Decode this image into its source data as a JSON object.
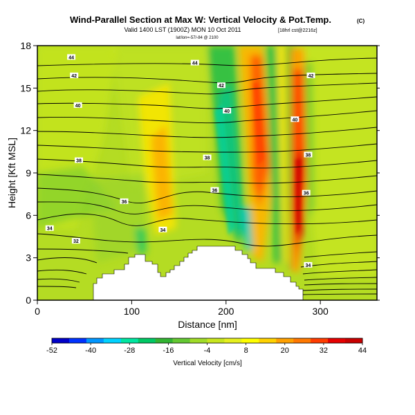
{
  "title": "Wind-Parallel Section at Max W: Vertical Velocity & Pot.Temp.",
  "copyright": "(C)",
  "subtitle": "Valid 1400 LST (1900Z) MON 10 Oct 2011",
  "subtitle_tag": "[18hrl cst@2216z]",
  "subtitle2": "lat/lon=-57/-84 @ 2100",
  "chart_data": {
    "type": "heatmap",
    "title": "Wind-Parallel Section at Max W: Vertical Velocity & Pot.Temp.",
    "xlabel": "Distance [nm]",
    "ylabel": "Height [Kft MSL]",
    "xlim": [
      0,
      360
    ],
    "ylim": [
      0,
      18
    ],
    "xticks": [
      0,
      100,
      200,
      300
    ],
    "yticks": [
      0,
      3,
      6,
      9,
      12,
      15,
      18
    ],
    "colorbar": {
      "label": "Vertical Velocity [cm/s]",
      "ticks": [
        -52,
        -40,
        -28,
        -16,
        -4,
        8,
        20,
        32,
        44
      ],
      "colors": [
        "#0000c8",
        "#0032ff",
        "#0096ff",
        "#00d2ff",
        "#00e6a0",
        "#00c864",
        "#32b432",
        "#64c832",
        "#a0dc28",
        "#c8e61e",
        "#e6f01e",
        "#ffff00",
        "#ffd200",
        "#ffa000",
        "#ff7800",
        "#ff3c00",
        "#e60000",
        "#c80000"
      ]
    },
    "contour_labels": [
      {
        "value": "44",
        "x": 36,
        "y": 17.2
      },
      {
        "value": "44",
        "x": 167,
        "y": 16.8
      },
      {
        "value": "42",
        "x": 39,
        "y": 15.9
      },
      {
        "value": "42",
        "x": 290,
        "y": 15.9
      },
      {
        "value": "42",
        "x": 195,
        "y": 15.2
      },
      {
        "value": "40",
        "x": 43,
        "y": 13.8
      },
      {
        "value": "40",
        "x": 201,
        "y": 13.4
      },
      {
        "value": "40",
        "x": 273,
        "y": 12.8
      },
      {
        "value": "38",
        "x": 44,
        "y": 9.9
      },
      {
        "value": "38",
        "x": 180,
        "y": 10.1
      },
      {
        "value": "38",
        "x": 287,
        "y": 10.3
      },
      {
        "value": "36",
        "x": 92,
        "y": 7.0
      },
      {
        "value": "36",
        "x": 188,
        "y": 7.8
      },
      {
        "value": "36",
        "x": 285,
        "y": 7.6
      },
      {
        "value": "34",
        "x": 13,
        "y": 5.1
      },
      {
        "value": "34",
        "x": 133,
        "y": 5.0
      },
      {
        "value": "34",
        "x": 287,
        "y": 2.5
      },
      {
        "value": "32",
        "x": 41,
        "y": 4.2
      }
    ],
    "terrain_profile": {
      "x": [
        0,
        20,
        50,
        60,
        70,
        85,
        100,
        108,
        120,
        127,
        132,
        140,
        160,
        180,
        200,
        215,
        225,
        240,
        250,
        262,
        270,
        276,
        280,
        300,
        360
      ],
      "height_kft": [
        0,
        0.8,
        1.6,
        1.8,
        2.2,
        2.6,
        3.2,
        3.3,
        2.0,
        1.6,
        2.2,
        2.7,
        3.4,
        3.9,
        3.9,
        3.6,
        2.5,
        2.0,
        2.4,
        2.0,
        1.6,
        1.0,
        1.0,
        0.5,
        0.3
      ]
    }
  }
}
